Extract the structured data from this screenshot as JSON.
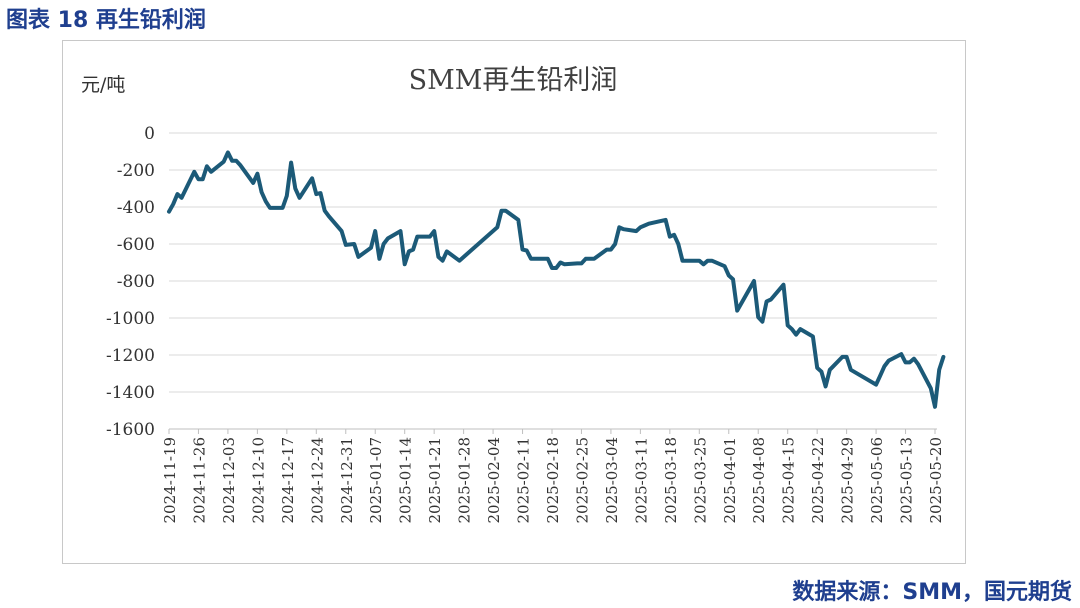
{
  "figure_caption": "图表 18 再生铅利润",
  "source_note": "数据来源：SMM，国元期货",
  "colors": {
    "line": "#1c5a78",
    "caption": "#1f3f8f",
    "grid": "#d9d9d9"
  },
  "chart_data": {
    "type": "line",
    "title": "SMM再生铅利润",
    "unit_label": "元/吨",
    "xlabel": "",
    "ylabel": "元/吨",
    "ylim": [
      -1600,
      0
    ],
    "yticks": [
      0,
      -200,
      -400,
      -600,
      -800,
      -1000,
      -1200,
      -1400,
      -1600
    ],
    "grid": true,
    "legend": "none",
    "x_tick_labels": [
      "2024-11-19",
      "2024-11-26",
      "2024-12-03",
      "2024-12-10",
      "2024-12-17",
      "2024-12-24",
      "2024-12-31",
      "2025-01-07",
      "2025-01-14",
      "2025-01-21",
      "2025-01-28",
      "2025-02-04",
      "2025-02-11",
      "2025-02-18",
      "2025-02-25",
      "2025-03-04",
      "2025-03-11",
      "2025-03-18",
      "2025-03-25",
      "2025-04-01",
      "2025-04-08",
      "2025-04-15",
      "2025-04-22",
      "2025-04-29",
      "2025-05-06",
      "2025-05-13",
      "2025-05-20"
    ],
    "series": [
      {
        "name": "SMM再生铅利润",
        "points": [
          [
            "2024-11-19",
            -425
          ],
          [
            "2024-11-20",
            -385
          ],
          [
            "2024-11-21",
            -330
          ],
          [
            "2024-11-22",
            -350
          ],
          [
            "2024-11-25",
            -210
          ],
          [
            "2024-11-26",
            -250
          ],
          [
            "2024-11-27",
            -250
          ],
          [
            "2024-11-28",
            -180
          ],
          [
            "2024-11-29",
            -210
          ],
          [
            "2024-12-02",
            -155
          ],
          [
            "2024-12-03",
            -105
          ],
          [
            "2024-12-04",
            -150
          ],
          [
            "2024-12-05",
            -150
          ],
          [
            "2024-12-06",
            -175
          ],
          [
            "2024-12-09",
            -270
          ],
          [
            "2024-12-10",
            -220
          ],
          [
            "2024-12-11",
            -320
          ],
          [
            "2024-12-12",
            -370
          ],
          [
            "2024-12-13",
            -405
          ],
          [
            "2024-12-16",
            -405
          ],
          [
            "2024-12-17",
            -340
          ],
          [
            "2024-12-18",
            -160
          ],
          [
            "2024-12-19",
            -300
          ],
          [
            "2024-12-20",
            -350
          ],
          [
            "2024-12-23",
            -245
          ],
          [
            "2024-12-24",
            -330
          ],
          [
            "2024-12-25",
            -325
          ],
          [
            "2024-12-26",
            -420
          ],
          [
            "2024-12-27",
            -450
          ],
          [
            "2024-12-30",
            -530
          ],
          [
            "2024-12-31",
            -605
          ],
          [
            "2025-01-02",
            -600
          ],
          [
            "2025-01-03",
            -670
          ],
          [
            "2025-01-06",
            -620
          ],
          [
            "2025-01-07",
            -530
          ],
          [
            "2025-01-08",
            -680
          ],
          [
            "2025-01-09",
            -600
          ],
          [
            "2025-01-10",
            -570
          ],
          [
            "2025-01-13",
            -530
          ],
          [
            "2025-01-14",
            -710
          ],
          [
            "2025-01-15",
            -640
          ],
          [
            "2025-01-16",
            -630
          ],
          [
            "2025-01-17",
            -560
          ],
          [
            "2025-01-20",
            -560
          ],
          [
            "2025-01-21",
            -530
          ],
          [
            "2025-01-22",
            -670
          ],
          [
            "2025-01-23",
            -690
          ],
          [
            "2025-01-24",
            -640
          ],
          [
            "2025-01-27",
            -690
          ],
          [
            "2025-02-05",
            -510
          ],
          [
            "2025-02-06",
            -420
          ],
          [
            "2025-02-07",
            -420
          ],
          [
            "2025-02-10",
            -470
          ],
          [
            "2025-02-11",
            -630
          ],
          [
            "2025-02-12",
            -635
          ],
          [
            "2025-02-13",
            -680
          ],
          [
            "2025-02-14",
            -680
          ],
          [
            "2025-02-17",
            -680
          ],
          [
            "2025-02-18",
            -730
          ],
          [
            "2025-02-19",
            -730
          ],
          [
            "2025-02-20",
            -700
          ],
          [
            "2025-02-21",
            -710
          ],
          [
            "2025-02-24",
            -705
          ],
          [
            "2025-02-25",
            -705
          ],
          [
            "2025-02-26",
            -680
          ],
          [
            "2025-02-27",
            -680
          ],
          [
            "2025-02-28",
            -680
          ],
          [
            "2025-03-03",
            -630
          ],
          [
            "2025-03-04",
            -630
          ],
          [
            "2025-03-05",
            -600
          ],
          [
            "2025-03-06",
            -510
          ],
          [
            "2025-03-07",
            -520
          ],
          [
            "2025-03-10",
            -530
          ],
          [
            "2025-03-11",
            -510
          ],
          [
            "2025-03-12",
            -500
          ],
          [
            "2025-03-13",
            -490
          ],
          [
            "2025-03-17",
            -470
          ],
          [
            "2025-03-18",
            -560
          ],
          [
            "2025-03-19",
            -550
          ],
          [
            "2025-03-20",
            -600
          ],
          [
            "2025-03-21",
            -690
          ],
          [
            "2025-03-24",
            -690
          ],
          [
            "2025-03-25",
            -690
          ],
          [
            "2025-03-26",
            -710
          ],
          [
            "2025-03-27",
            -690
          ],
          [
            "2025-03-28",
            -690
          ],
          [
            "2025-03-31",
            -720
          ],
          [
            "2025-04-01",
            -770
          ],
          [
            "2025-04-02",
            -790
          ],
          [
            "2025-04-03",
            -960
          ],
          [
            "2025-04-07",
            -800
          ],
          [
            "2025-04-08",
            -995
          ],
          [
            "2025-04-09",
            -1020
          ],
          [
            "2025-04-10",
            -910
          ],
          [
            "2025-04-11",
            -900
          ],
          [
            "2025-04-14",
            -820
          ],
          [
            "2025-04-15",
            -1040
          ],
          [
            "2025-04-16",
            -1060
          ],
          [
            "2025-04-17",
            -1090
          ],
          [
            "2025-04-18",
            -1060
          ],
          [
            "2025-04-21",
            -1100
          ],
          [
            "2025-04-22",
            -1270
          ],
          [
            "2025-04-23",
            -1290
          ],
          [
            "2025-04-24",
            -1370
          ],
          [
            "2025-04-25",
            -1280
          ],
          [
            "2025-04-28",
            -1210
          ],
          [
            "2025-04-29",
            -1210
          ],
          [
            "2025-04-30",
            -1280
          ],
          [
            "2025-05-06",
            -1360
          ],
          [
            "2025-05-07",
            -1310
          ],
          [
            "2025-05-08",
            -1260
          ],
          [
            "2025-05-09",
            -1230
          ],
          [
            "2025-05-12",
            -1195
          ],
          [
            "2025-05-13",
            -1240
          ],
          [
            "2025-05-14",
            -1240
          ],
          [
            "2025-05-15",
            -1220
          ],
          [
            "2025-05-16",
            -1250
          ],
          [
            "2025-05-19",
            -1380
          ],
          [
            "2025-05-20",
            -1480
          ],
          [
            "2025-05-21",
            -1280
          ],
          [
            "2025-05-22",
            -1210
          ]
        ]
      }
    ]
  }
}
